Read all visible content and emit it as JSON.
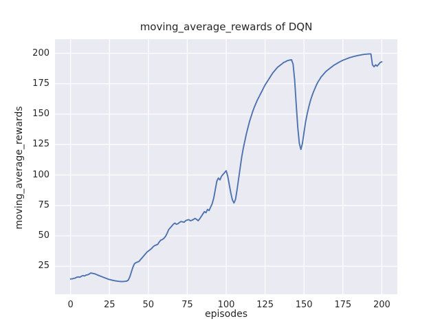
{
  "figure": {
    "background": "#ffffff",
    "plot_background": "#eaeaf2",
    "grid_color": "#ffffff",
    "text_color": "#262626",
    "accent_line_color": "#4c72b0"
  },
  "chart_data": {
    "type": "line",
    "title": "moving_average_rewards of DQN",
    "xlabel": "episodes",
    "ylabel": "moving_average_rewards",
    "x_ticks": [
      0,
      25,
      50,
      75,
      100,
      125,
      150,
      175,
      200
    ],
    "y_ticks": [
      25,
      50,
      75,
      100,
      125,
      150,
      175,
      200
    ],
    "xlim": [
      -10,
      210
    ],
    "ylim": [
      2,
      211.6
    ],
    "grid": true,
    "legend_position": "none",
    "series": [
      {
        "name": "moving_average_rewards",
        "color": "#4c72b0",
        "x_start": 0,
        "x_step": 1,
        "y": [
          14.5,
          14.7,
          15.0,
          15.3,
          16.0,
          16.2,
          16.0,
          16.8,
          17.3,
          17.0,
          17.8,
          18.0,
          18.6,
          19.5,
          19.2,
          19.0,
          18.6,
          18.0,
          17.5,
          17.0,
          16.5,
          16.0,
          15.5,
          15.0,
          14.5,
          14.1,
          13.8,
          13.5,
          13.2,
          13.0,
          12.8,
          12.6,
          12.5,
          12.4,
          12.5,
          12.6,
          12.8,
          13.5,
          16.0,
          20.0,
          24.0,
          27.0,
          28.0,
          28.5,
          29.0,
          30.5,
          32.0,
          33.5,
          35.0,
          36.5,
          37.5,
          38.5,
          39.5,
          41.0,
          42.0,
          42.5,
          43.0,
          45.0,
          46.5,
          47.0,
          48.0,
          49.5,
          52.0,
          55.0,
          56.5,
          58.0,
          59.5,
          60.5,
          59.5,
          60.0,
          61.0,
          61.8,
          61.5,
          61.2,
          62.5,
          63.0,
          63.3,
          62.4,
          62.8,
          63.5,
          64.3,
          63.5,
          62.4,
          64.0,
          66.0,
          68.0,
          69.9,
          69.0,
          71.7,
          70.8,
          73.6,
          76.4,
          81.0,
          88.0,
          95.0,
          97.5,
          96.0,
          99.0,
          100.5,
          102.0,
          103.5,
          99.0,
          92.0,
          85.0,
          79.5,
          77.0,
          80.0,
          88.0,
          97.0,
          106.0,
          115.0,
          122.0,
          128.0,
          134.0,
          139.0,
          144.0,
          148.0,
          152.0,
          155.5,
          158.5,
          161.5,
          164.0,
          166.5,
          169.0,
          171.5,
          174.0,
          176.0,
          178.0,
          180.0,
          182.0,
          184.0,
          185.5,
          187.0,
          188.5,
          189.5,
          190.5,
          191.5,
          192.5,
          193.0,
          193.8,
          194.2,
          194.5,
          194.7,
          191.0,
          178.0,
          158.0,
          139.0,
          126.0,
          121.0,
          126.0,
          135.0,
          143.5,
          150.0,
          155.5,
          160.5,
          164.5,
          168.0,
          171.0,
          174.0,
          176.5,
          178.5,
          180.5,
          182.0,
          183.5,
          185.0,
          186.0,
          187.0,
          188.0,
          189.0,
          190.0,
          190.8,
          191.5,
          192.3,
          193.0,
          193.7,
          194.3,
          194.8,
          195.3,
          195.8,
          196.3,
          196.7,
          197.0,
          197.4,
          197.7,
          198.0,
          198.3,
          198.5,
          198.8,
          199.0,
          199.2,
          199.3,
          199.4,
          199.5,
          199.5,
          190.5,
          189.0,
          190.5,
          189.5,
          191.0,
          192.5,
          193.0
        ]
      }
    ]
  }
}
